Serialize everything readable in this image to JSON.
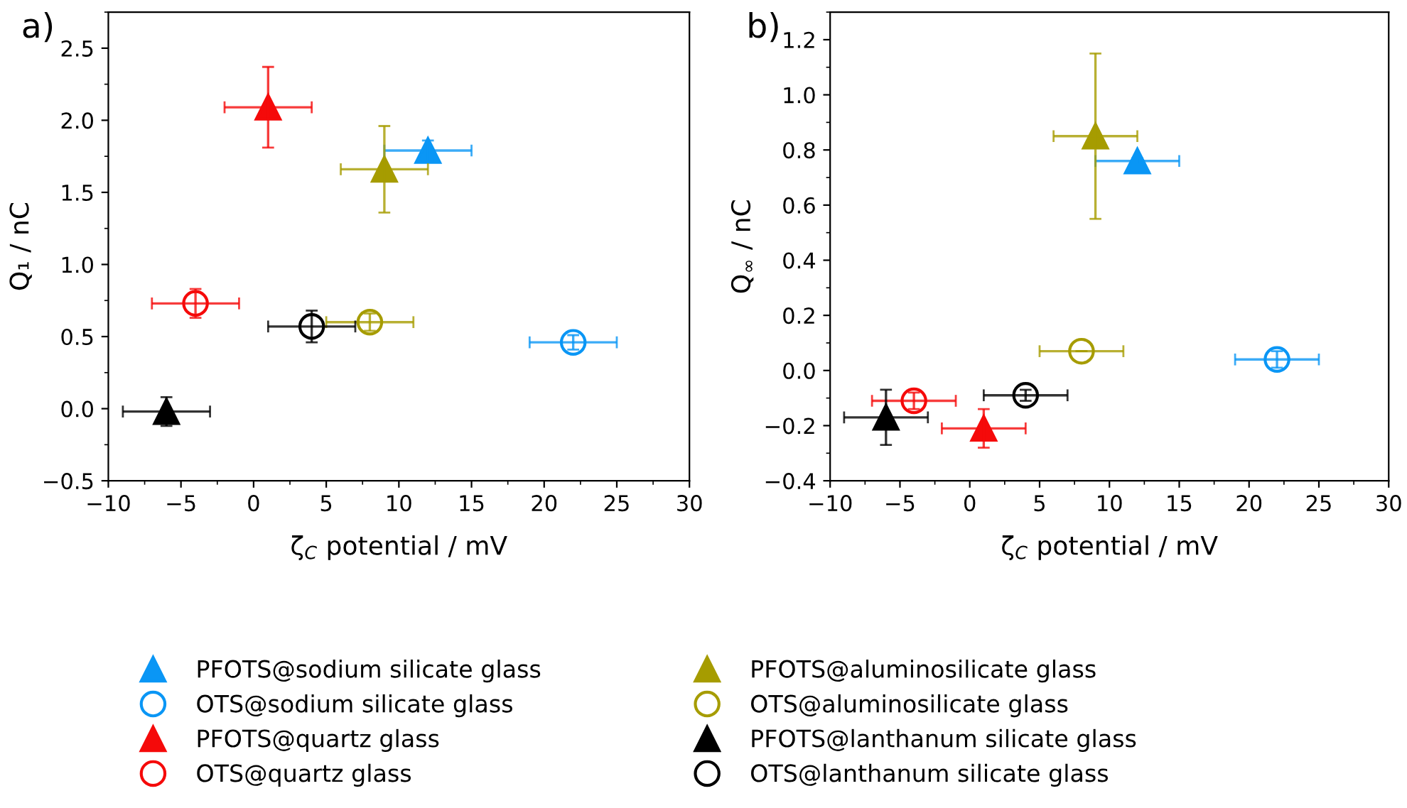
{
  "chart_data": [
    {
      "type": "scatter",
      "title": "a)",
      "xlabel": "ζ$_{C}$ potential / mV",
      "ylabel": "Q₁ / nC",
      "xlim": [
        -10,
        30
      ],
      "xticks": [
        -10,
        -5,
        0,
        5,
        10,
        15,
        20,
        25,
        30
      ],
      "ylim": [
        -0.5,
        2.75
      ],
      "yticks": [
        -0.5,
        {
          "value": 0,
          "label": "0.0"
        },
        0.5,
        {
          "value": 1,
          "label": "1.0"
        },
        1.5,
        {
          "value": 2,
          "label": "2.0"
        },
        2.5
      ],
      "legend": "bottom",
      "grid": false,
      "series": [
        {
          "name": "PFOTS@sodium silicate glass",
          "color": "#0a96f5",
          "marker": "triangle",
          "x": [
            12
          ],
          "values": [
            1.79
          ],
          "errors": [
            0.07
          ],
          "xerrors": [
            3
          ]
        },
        {
          "name": "OTS@sodium silicate glass",
          "color": "#0a96f5",
          "marker": "circle",
          "x": [
            22
          ],
          "values": [
            0.46
          ],
          "errors": [
            0.05
          ],
          "xerrors": [
            3
          ]
        },
        {
          "name": "PFOTS@quartz glass",
          "color": "#f50a0a",
          "marker": "triangle",
          "x": [
            1
          ],
          "values": [
            2.09
          ],
          "errors": [
            0.28
          ],
          "xerrors": [
            3
          ]
        },
        {
          "name": "OTS@quartz glass",
          "color": "#f50a0a",
          "marker": "circle",
          "x": [
            -4
          ],
          "values": [
            0.73
          ],
          "errors": [
            0.1
          ],
          "xerrors": [
            3
          ]
        },
        {
          "name": "PFOTS@aluminosilicate glass",
          "color": "#a69c00",
          "marker": "triangle",
          "x": [
            9
          ],
          "values": [
            1.66
          ],
          "errors": [
            0.3
          ],
          "xerrors": [
            3
          ]
        },
        {
          "name": "OTS@aluminosilicate glass",
          "color": "#a69c00",
          "marker": "circle",
          "x": [
            8
          ],
          "values": [
            0.6
          ],
          "errors": [
            0.06
          ],
          "xerrors": [
            3
          ]
        },
        {
          "name": "PFOTS@lanthanum silicate glass",
          "color": "#000000",
          "marker": "triangle",
          "x": [
            -6
          ],
          "values": [
            -0.02
          ],
          "errors": [
            0.1
          ],
          "xerrors": [
            3
          ]
        },
        {
          "name": "OTS@lanthanum silicate glass",
          "color": "#000000",
          "marker": "circle",
          "x": [
            4
          ],
          "values": [
            0.57
          ],
          "errors": [
            0.11
          ],
          "xerrors": [
            3
          ]
        }
      ]
    },
    {
      "type": "scatter",
      "title": "b)",
      "xlabel": "ζ$_{C}$ potential / mV",
      "ylabel": "Q$_{∞}$ / nC",
      "xlim": [
        -10,
        30
      ],
      "xticks": [
        -10,
        -5,
        0,
        5,
        10,
        15,
        20,
        25,
        30
      ],
      "ylim": [
        -0.4,
        1.3
      ],
      "yticks": [
        -0.4,
        -0.2,
        {
          "value": 0,
          "label": "0.0"
        },
        0.2,
        0.4,
        0.6,
        0.8,
        {
          "value": 1,
          "label": "1.0"
        },
        1.2
      ],
      "grid": false,
      "series": [
        {
          "color": "#0a96f5",
          "marker": "triangle",
          "x": [
            12
          ],
          "values": [
            0.76
          ],
          "errors": [
            0.01
          ],
          "xerrors": [
            3
          ]
        },
        {
          "color": "#0a96f5",
          "marker": "circle",
          "x": [
            22
          ],
          "values": [
            0.04
          ],
          "errors": [
            0.03
          ],
          "xerrors": [
            3
          ]
        },
        {
          "color": "#f50a0a",
          "marker": "triangle",
          "x": [
            1
          ],
          "values": [
            -0.21
          ],
          "errors": [
            0.07
          ],
          "xerrors": [
            3
          ]
        },
        {
          "color": "#f50a0a",
          "marker": "circle",
          "x": [
            -4
          ],
          "values": [
            -0.11
          ],
          "errors": [
            0.03
          ],
          "xerrors": [
            3
          ]
        },
        {
          "color": "#a69c00",
          "marker": "triangle",
          "x": [
            9
          ],
          "values": [
            0.85
          ],
          "errors": [
            0.3
          ],
          "xerrors": [
            3
          ]
        },
        {
          "color": "#a69c00",
          "marker": "circle",
          "x": [
            8
          ],
          "values": [
            0.07
          ],
          "errors": [
            null
          ],
          "xerrors": [
            3
          ]
        },
        {
          "color": "#000000",
          "marker": "triangle",
          "x": [
            -6
          ],
          "values": [
            -0.17
          ],
          "errors": [
            0.1
          ],
          "xerrors": [
            3
          ]
        },
        {
          "color": "#000000",
          "marker": "circle",
          "x": [
            4
          ],
          "values": [
            -0.09
          ],
          "errors": [
            0.02
          ],
          "xerrors": [
            3
          ]
        }
      ]
    }
  ]
}
